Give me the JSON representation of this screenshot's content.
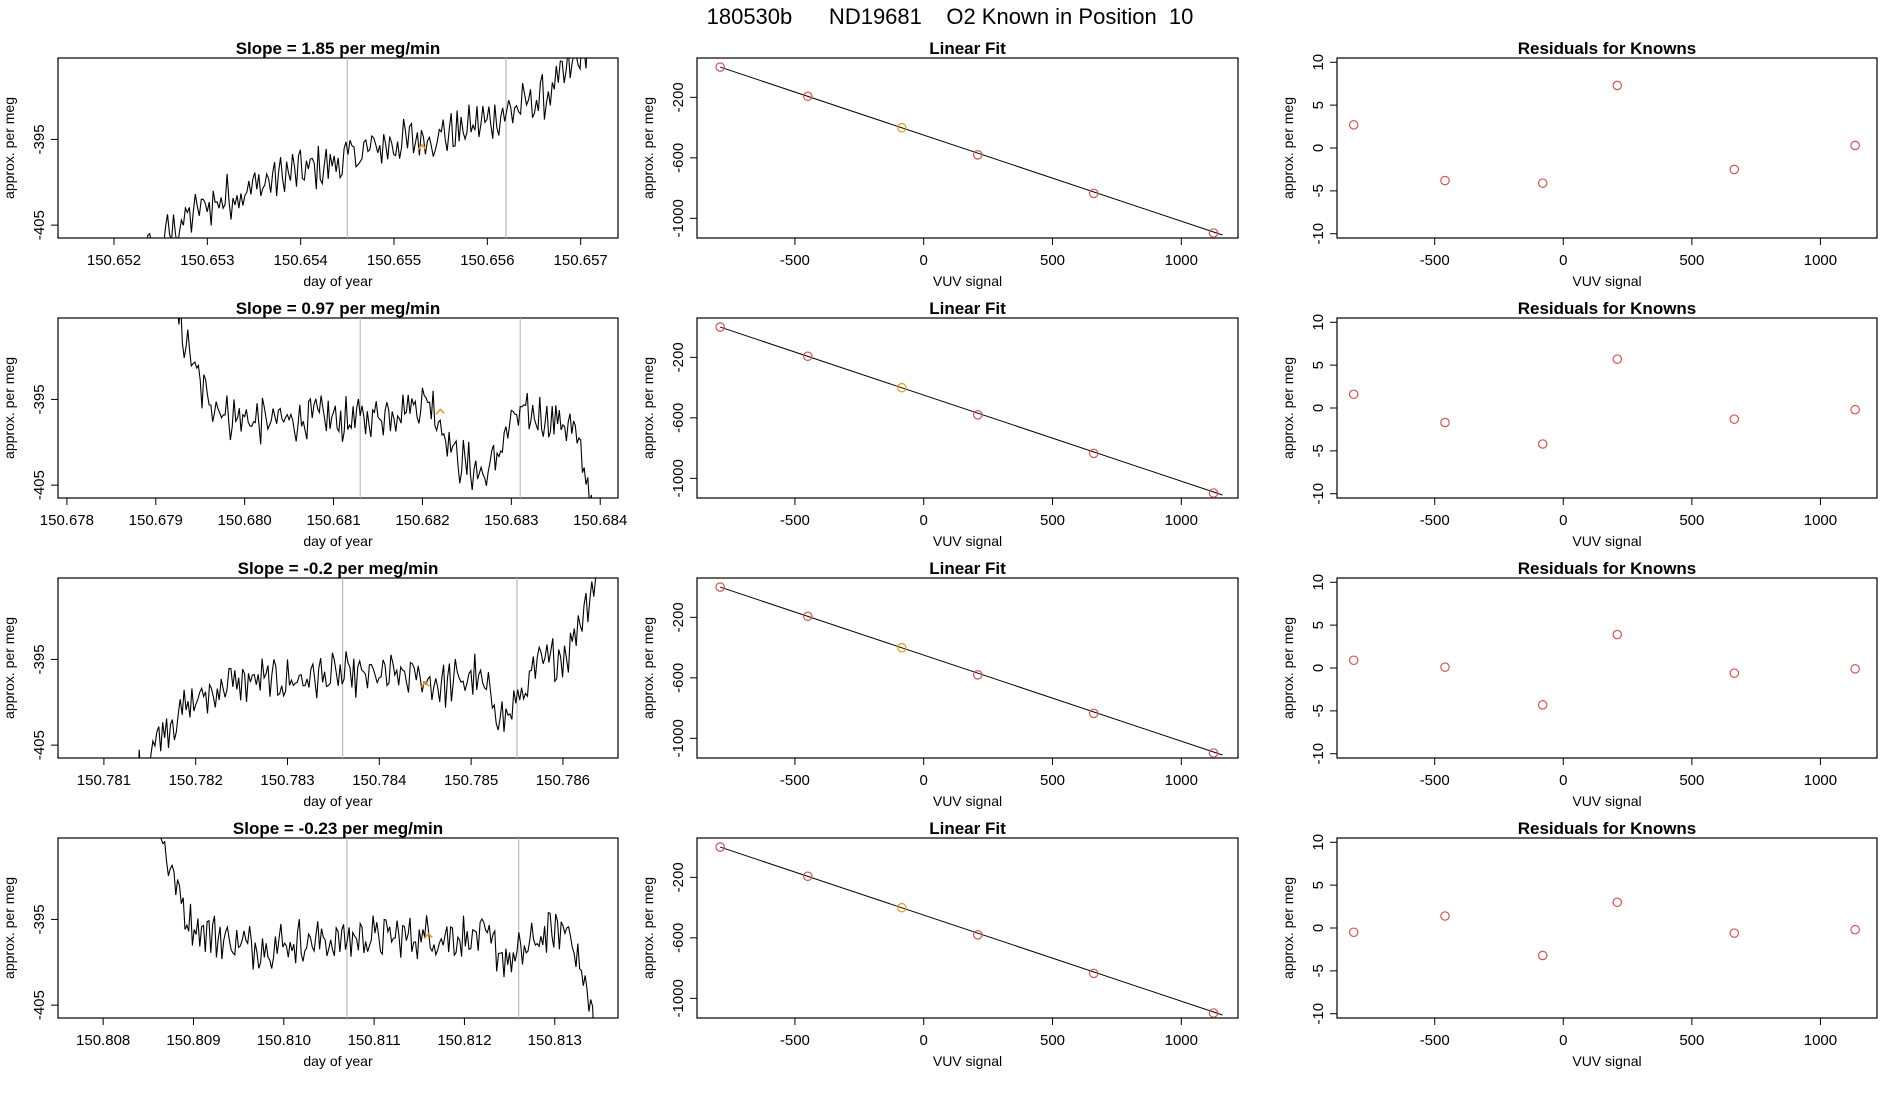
{
  "figure_title": "180530b      ND19681    O2 Known in Position  10",
  "colors": {
    "trace": "#000000",
    "vline": "#bbbbbb",
    "known": "#d9534f",
    "highlight": "#e69a1c"
  },
  "chart_data": [
    {
      "type": "line",
      "role": "trace",
      "row": 0,
      "title": "Slope =  1.85  per meg/min",
      "xlabel": "day of year",
      "ylabel": "approx. per meg",
      "xlim": [
        150.6514,
        150.6574
      ],
      "ylim": [
        -406.5,
        -385.5
      ],
      "xticks": [
        "150.652",
        "150.653",
        "150.654",
        "150.655",
        "150.656",
        "150.657"
      ],
      "yticks": [
        "-395",
        "-405"
      ],
      "vlines": [
        150.6545,
        150.6562
      ],
      "marker": [
        150.6553,
        -396.0
      ],
      "profile": {
        "start": 150.652,
        "end": 150.6571,
        "levels": [
          -412,
          -407,
          -403,
          -401,
          -399,
          -398,
          -396,
          -395,
          -394,
          -392,
          -390,
          -384
        ]
      }
    },
    {
      "type": "line",
      "role": "trace",
      "row": 1,
      "title": "Slope =  0.97  per meg/min",
      "xlabel": "day of year",
      "ylabel": "approx. per meg",
      "xlim": [
        150.6779,
        150.6842
      ],
      "ylim": [
        -406.5,
        -385.5
      ],
      "xticks": [
        "150.678",
        "150.679",
        "150.680",
        "150.681",
        "150.682",
        "150.683",
        "150.684"
      ],
      "yticks": [
        "-395",
        "-405"
      ],
      "vlines": [
        150.6813,
        150.6831
      ],
      "marker": [
        150.6822,
        -396.5
      ],
      "profile": {
        "start": 150.6792,
        "end": 150.684,
        "levels": [
          -384,
          -394,
          -397,
          -397.5,
          -397.5,
          -397,
          -397.5,
          -397,
          -396,
          -395,
          -402,
          -404,
          -397,
          -397,
          -398,
          -410
        ]
      }
    },
    {
      "type": "line",
      "role": "trace",
      "row": 2,
      "title": "Slope =  -0.2  per meg/min",
      "xlabel": "day of year",
      "ylabel": "approx. per meg",
      "xlim": [
        150.7805,
        150.7866
      ],
      "ylim": [
        -406.5,
        -385.5
      ],
      "xticks": [
        "150.781",
        "150.782",
        "150.783",
        "150.784",
        "150.785",
        "150.786"
      ],
      "yticks": [
        "-395",
        "-405"
      ],
      "vlines": [
        150.7836,
        150.7855
      ],
      "marker": [
        150.7845,
        -398.0
      ],
      "profile": {
        "start": 150.7813,
        "end": 150.7864,
        "levels": [
          -410,
          -403,
          -400,
          -398,
          -397.5,
          -397.5,
          -397,
          -397,
          -397,
          -397,
          -398,
          -397,
          -402,
          -396,
          -394,
          -384
        ]
      }
    },
    {
      "type": "line",
      "role": "trace",
      "row": 3,
      "title": "Slope =  -0.23  per meg/min",
      "xlabel": "day of year",
      "ylabel": "approx. per meg",
      "xlim": [
        150.8075,
        150.8137
      ],
      "ylim": [
        -406.5,
        -385.5
      ],
      "xticks": [
        "150.808",
        "150.809",
        "150.810",
        "150.811",
        "150.812",
        "150.813"
      ],
      "yticks": [
        "-395",
        "-405"
      ],
      "vlines": [
        150.8107,
        150.8126
      ],
      "marker": [
        150.8116,
        -397.0
      ],
      "profile": {
        "start": 150.8086,
        "end": 150.8135,
        "levels": [
          -384,
          -395,
          -397,
          -398,
          -398,
          -397.5,
          -397.5,
          -397,
          -397,
          -397,
          -397,
          -397,
          -400,
          -397,
          -396,
          -410
        ]
      }
    },
    {
      "type": "scatter",
      "role": "fit",
      "row": 0,
      "title": "Linear Fit",
      "xlabel": "VUV signal",
      "ylabel": "approx. per meg",
      "xlim": [
        -880,
        1220
      ],
      "ylim": [
        -1130,
        60
      ],
      "xticks": [
        "-500",
        "0",
        "500",
        "1000"
      ],
      "yticks": [
        "-200",
        "-600",
        "-1000"
      ],
      "line": [
        [
          -790,
          0
        ],
        [
          1160,
          -1110
        ]
      ],
      "highlight": 2,
      "points": [
        [
          -790,
          0
        ],
        [
          -450,
          -193
        ],
        [
          -85,
          -401
        ],
        [
          210,
          -580
        ],
        [
          660,
          -835
        ],
        [
          1125,
          -1097
        ]
      ]
    },
    {
      "type": "scatter",
      "role": "fit",
      "row": 1,
      "title": "Linear Fit",
      "xlabel": "VUV signal",
      "ylabel": "approx. per meg",
      "xlim": [
        -880,
        1220
      ],
      "ylim": [
        -1130,
        60
      ],
      "xticks": [
        "-500",
        "0",
        "500",
        "1000"
      ],
      "yticks": [
        "-200",
        "-600",
        "-1000"
      ],
      "line": [
        [
          -790,
          0
        ],
        [
          1160,
          -1110
        ]
      ],
      "highlight": 2,
      "points": [
        [
          -790,
          0
        ],
        [
          -450,
          -193
        ],
        [
          -85,
          -401
        ],
        [
          210,
          -580
        ],
        [
          660,
          -835
        ],
        [
          1125,
          -1097
        ]
      ]
    },
    {
      "type": "scatter",
      "role": "fit",
      "row": 2,
      "title": "Linear Fit",
      "xlabel": "VUV signal",
      "ylabel": "approx. per meg",
      "xlim": [
        -880,
        1220
      ],
      "ylim": [
        -1130,
        60
      ],
      "xticks": [
        "-500",
        "0",
        "500",
        "1000"
      ],
      "yticks": [
        "-200",
        "-600",
        "-1000"
      ],
      "line": [
        [
          -790,
          0
        ],
        [
          1160,
          -1110
        ]
      ],
      "highlight": 2,
      "points": [
        [
          -790,
          0
        ],
        [
          -450,
          -193
        ],
        [
          -85,
          -401
        ],
        [
          210,
          -580
        ],
        [
          660,
          -835
        ],
        [
          1125,
          -1097
        ]
      ]
    },
    {
      "type": "scatter",
      "role": "fit",
      "row": 3,
      "title": "Linear Fit",
      "xlabel": "VUV signal",
      "ylabel": "approx. per meg",
      "xlim": [
        -880,
        1220
      ],
      "ylim": [
        -1130,
        60
      ],
      "xticks": [
        "-500",
        "0",
        "500",
        "1000"
      ],
      "yticks": [
        "-200",
        "-600",
        "-1000"
      ],
      "line": [
        [
          -790,
          0
        ],
        [
          1160,
          -1110
        ]
      ],
      "highlight": 2,
      "points": [
        [
          -790,
          0
        ],
        [
          -450,
          -193
        ],
        [
          -85,
          -401
        ],
        [
          210,
          -580
        ],
        [
          660,
          -835
        ],
        [
          1125,
          -1097
        ]
      ]
    },
    {
      "type": "scatter",
      "role": "residuals",
      "row": 0,
      "title": "Residuals for Knowns",
      "xlabel": "VUV signal",
      "ylabel": "approx. per meg",
      "xlim": [
        -880,
        1220
      ],
      "ylim": [
        -10.5,
        10.5
      ],
      "xticks": [
        "-500",
        "0",
        "500",
        "1000"
      ],
      "yticks": [
        "-10",
        "-5",
        "0",
        "5",
        "10"
      ],
      "points": [
        [
          -815,
          2.7
        ],
        [
          -460,
          -3.8
        ],
        [
          -80,
          -4.1
        ],
        [
          210,
          7.3
        ],
        [
          665,
          -2.5
        ],
        [
          1135,
          0.3
        ]
      ]
    },
    {
      "type": "scatter",
      "role": "residuals",
      "row": 1,
      "title": "Residuals for Knowns",
      "xlabel": "VUV signal",
      "ylabel": "approx. per meg",
      "xlim": [
        -880,
        1220
      ],
      "ylim": [
        -10.5,
        10.5
      ],
      "xticks": [
        "-500",
        "0",
        "500",
        "1000"
      ],
      "yticks": [
        "-10",
        "-5",
        "0",
        "5",
        "10"
      ],
      "points": [
        [
          -815,
          1.6
        ],
        [
          -460,
          -1.7
        ],
        [
          -80,
          -4.2
        ],
        [
          210,
          5.7
        ],
        [
          665,
          -1.3
        ],
        [
          1135,
          -0.2
        ]
      ]
    },
    {
      "type": "scatter",
      "role": "residuals",
      "row": 2,
      "title": "Residuals for Knowns",
      "xlabel": "VUV signal",
      "ylabel": "approx. per meg",
      "xlim": [
        -880,
        1220
      ],
      "ylim": [
        -10.5,
        10.5
      ],
      "xticks": [
        "-500",
        "0",
        "500",
        "1000"
      ],
      "yticks": [
        "-10",
        "-5",
        "0",
        "5",
        "10"
      ],
      "points": [
        [
          -815,
          0.9
        ],
        [
          -460,
          0.1
        ],
        [
          -80,
          -4.3
        ],
        [
          210,
          3.9
        ],
        [
          665,
          -0.6
        ],
        [
          1135,
          -0.1
        ]
      ]
    },
    {
      "type": "scatter",
      "role": "residuals",
      "row": 3,
      "title": "Residuals for Knowns",
      "xlabel": "VUV signal",
      "ylabel": "approx. per meg",
      "xlim": [
        -880,
        1220
      ],
      "ylim": [
        -10.5,
        10.5
      ],
      "xticks": [
        "-500",
        "0",
        "500",
        "1000"
      ],
      "yticks": [
        "-10",
        "-5",
        "0",
        "5",
        "10"
      ],
      "points": [
        [
          -815,
          -0.5
        ],
        [
          -460,
          1.4
        ],
        [
          -80,
          -3.2
        ],
        [
          210,
          3.0
        ],
        [
          665,
          -0.6
        ],
        [
          1135,
          -0.2
        ]
      ]
    }
  ]
}
